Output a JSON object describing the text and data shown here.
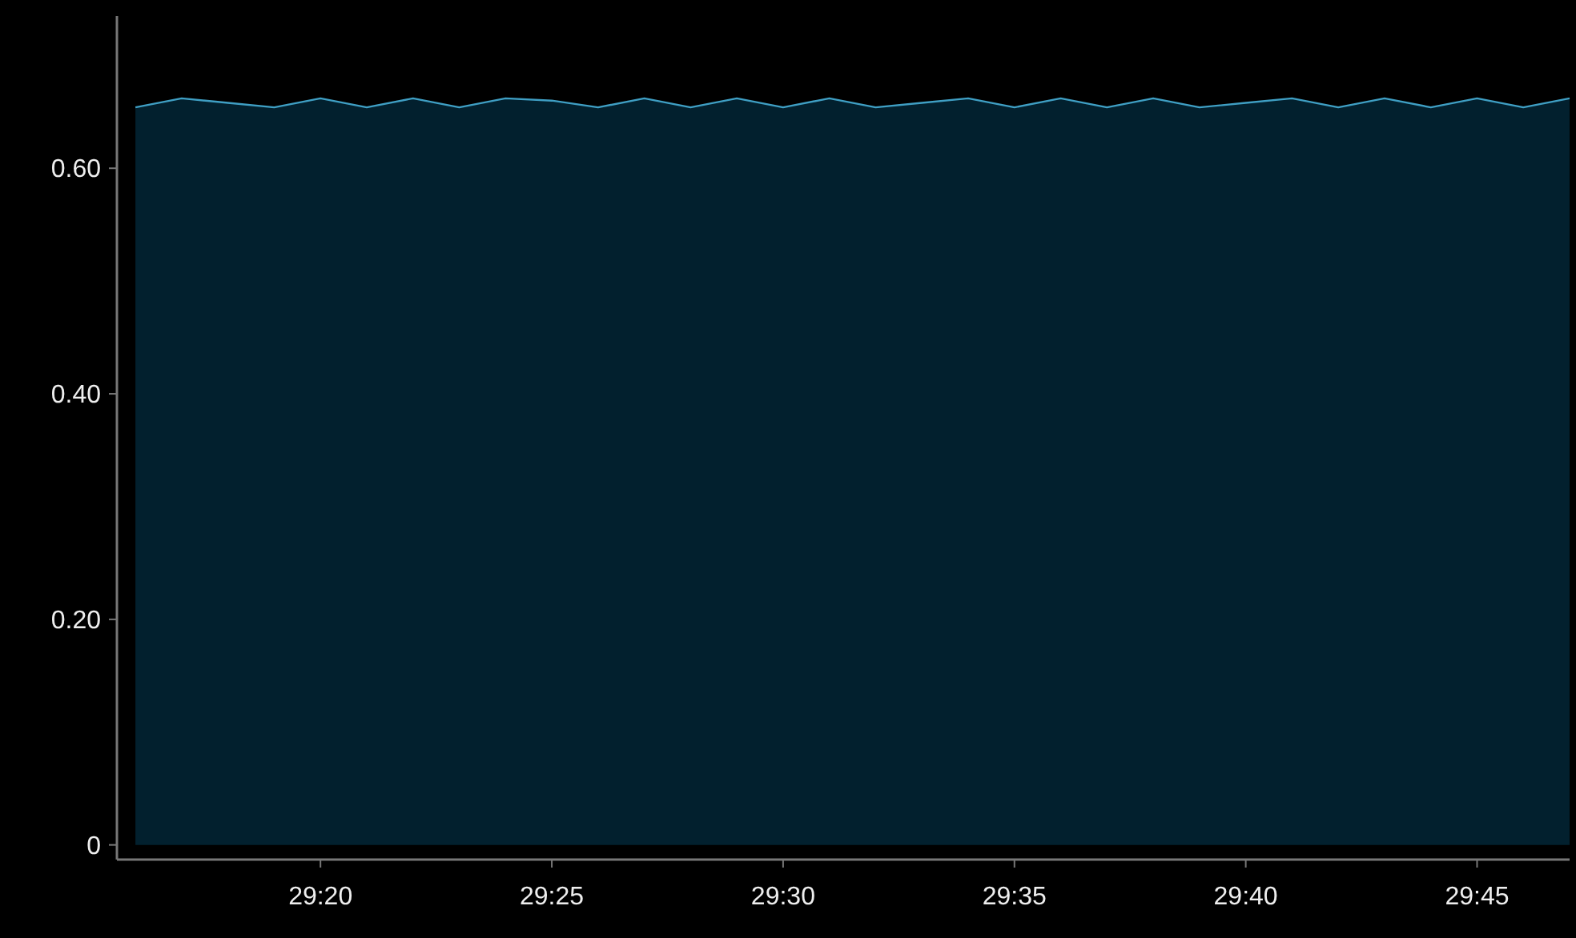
{
  "chart_data": {
    "type": "area",
    "x": [
      1756,
      1757,
      1758,
      1759,
      1760,
      1761,
      1762,
      1763,
      1764,
      1765,
      1766,
      1767,
      1768,
      1769,
      1770,
      1771,
      1772,
      1773,
      1774,
      1775,
      1776,
      1777,
      1778,
      1779,
      1780,
      1781,
      1782,
      1783,
      1784,
      1785,
      1786,
      1787
    ],
    "series": [
      {
        "color": "#3f9fc4",
        "values": [
          0.654,
          0.662,
          0.658,
          0.654,
          0.662,
          0.654,
          0.662,
          0.654,
          0.662,
          0.66,
          0.654,
          0.662,
          0.654,
          0.662,
          0.654,
          0.662,
          0.654,
          0.658,
          0.662,
          0.654,
          0.662,
          0.654,
          0.662,
          0.654,
          0.658,
          0.662,
          0.654,
          0.662,
          0.654,
          0.662,
          0.654,
          0.662
        ]
      }
    ],
    "xlim": [
      1755.6,
      1787
    ],
    "ylim": [
      -0.013,
      0.735
    ],
    "xticks": [
      {
        "value": 1760,
        "label": "29:20"
      },
      {
        "value": 1765,
        "label": "29:25"
      },
      {
        "value": 1770,
        "label": "29:30"
      },
      {
        "value": 1775,
        "label": "29:35"
      },
      {
        "value": 1780,
        "label": "29:40"
      },
      {
        "value": 1785,
        "label": "29:45"
      }
    ],
    "yticks": [
      0,
      {
        "value": 0.2,
        "label": "0.20"
      },
      {
        "value": 0.4,
        "label": "0.40"
      },
      {
        "value": 0.6,
        "label": "0.60"
      }
    ],
    "grid": false
  }
}
